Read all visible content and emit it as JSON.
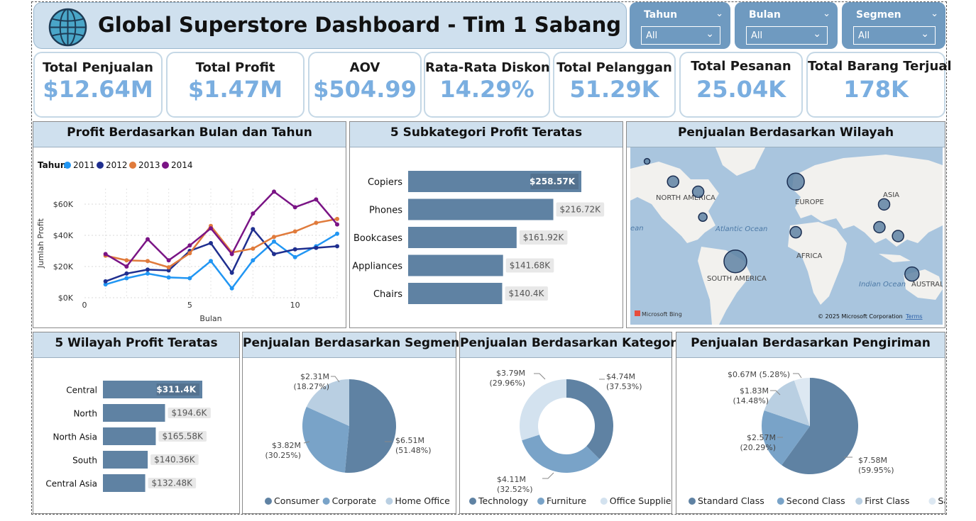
{
  "header": {
    "title": "Global Superstore Dashboard - Tim 1 Sabang",
    "icon": "globe-icon"
  },
  "filters": [
    {
      "label": "Tahun",
      "value": "All"
    },
    {
      "label": "Bulan",
      "value": "All"
    },
    {
      "label": "Segmen",
      "value": "All"
    }
  ],
  "kpis": [
    {
      "label": "Total Penjualan",
      "value": "$12.64M"
    },
    {
      "label": "Total Profit",
      "value": "$1.47M"
    },
    {
      "label": "AOV",
      "value": "$504.99"
    },
    {
      "label": "Rata-Rata Diskon",
      "value": "14.29%"
    },
    {
      "label": "Total Pelanggan",
      "value": "51.29K"
    },
    {
      "label": "Total Pesanan",
      "value": "25.04K"
    },
    {
      "label": "Total Barang Terjual",
      "value": "178K"
    }
  ],
  "colors": {
    "accent": "#7aaee0",
    "bar": "#5f82a3",
    "panel_header": "#cfe0ee",
    "filter_bg": "#6f9ac0"
  },
  "panels": {
    "line": {
      "title": "Profit Berdasarkan Bulan dan Tahun"
    },
    "subcat": {
      "title": "5 Subkategori Profit Teratas"
    },
    "map": {
      "title": "Penjualan Berdasarkan Wilayah"
    },
    "region": {
      "title": "5 Wilayah Profit Teratas"
    },
    "segment": {
      "title": "Penjualan Berdasarkan Segmen"
    },
    "category": {
      "title": "Penjualan Berdasarkan Kategori"
    },
    "shipping": {
      "title": "Penjualan Berdasarkan Pengiriman"
    }
  },
  "map": {
    "labels": [
      "NORTH AMERICA",
      "EUROPE",
      "ASIA",
      "Atlantic Ocean",
      "AFRICA",
      "SOUTH AMERICA",
      "Indian Ocean",
      "AUSTRAL",
      "ean"
    ],
    "credit_left": "Microsoft Bing",
    "credit_right": "© 2025 Microsoft Corporation",
    "terms": "Terms"
  },
  "chart_data": [
    {
      "type": "line",
      "title": "Profit Berdasarkan Bulan dan Tahun",
      "xlabel": "Bulan",
      "ylabel": "Jumlah Profit",
      "legend_title": "Tahun",
      "legend_position": "top-left",
      "xlim": [
        0,
        12
      ],
      "ylim": [
        0,
        70000
      ],
      "xticks": [
        0,
        5,
        10
      ],
      "yticks": [
        0,
        20000,
        40000,
        60000
      ],
      "ytick_labels": [
        "$0K",
        "$20K",
        "$40K",
        "$60K"
      ],
      "grid": true,
      "x": [
        1,
        2,
        3,
        4,
        5,
        6,
        7,
        8,
        9,
        10,
        11,
        12
      ],
      "series": [
        {
          "name": "2011",
          "color": "#2196f3",
          "values": [
            8500,
            12500,
            15500,
            13000,
            12500,
            23500,
            6000,
            24000,
            36000,
            26000,
            33000,
            41000
          ]
        },
        {
          "name": "2012",
          "color": "#1f2f8f",
          "values": [
            10500,
            15500,
            18000,
            17500,
            30000,
            35000,
            16000,
            44000,
            28000,
            31000,
            32000,
            33000
          ]
        },
        {
          "name": "2013",
          "color": "#e07b3c",
          "values": [
            27000,
            24000,
            23500,
            19500,
            28500,
            46000,
            29000,
            31500,
            39000,
            42500,
            48000,
            50500
          ]
        },
        {
          "name": "2014",
          "color": "#7a1485",
          "values": [
            28000,
            20000,
            37500,
            24000,
            33500,
            44500,
            28000,
            54000,
            68000,
            58000,
            63000,
            47000
          ]
        }
      ]
    },
    {
      "type": "bar",
      "orientation": "horizontal",
      "title": "5 Subkategori Profit Teratas",
      "categories": [
        "Copiers",
        "Phones",
        "Bookcases",
        "Appliances",
        "Chairs"
      ],
      "values": [
        258570,
        216720,
        161920,
        141680,
        140400
      ],
      "labels": [
        "$258.57K",
        "$216.72K",
        "$161.92K",
        "$141.68K",
        "$140.4K"
      ]
    },
    {
      "type": "scatter",
      "title": "Penjualan Berdasarkan Wilayah",
      "note": "bubble map",
      "bubbles": [
        {
          "lat": 64,
          "lon": -150,
          "size": 1
        },
        {
          "lat": 48,
          "lon": -122,
          "size": 2
        },
        {
          "lat": 40,
          "lon": -95,
          "size": 2
        },
        {
          "lat": 20,
          "lon": -90,
          "size": 1.5
        },
        {
          "lat": -15,
          "lon": -55,
          "size": 4
        },
        {
          "lat": 48,
          "lon": 10,
          "size": 3
        },
        {
          "lat": 8,
          "lon": 10,
          "size": 2
        },
        {
          "lat": 30,
          "lon": 105,
          "size": 2
        },
        {
          "lat": 12,
          "lon": 100,
          "size": 2
        },
        {
          "lat": 5,
          "lon": 120,
          "size": 2
        },
        {
          "lat": -25,
          "lon": 135,
          "size": 2.5
        }
      ]
    },
    {
      "type": "bar",
      "orientation": "horizontal",
      "title": "5 Wilayah Profit Teratas",
      "categories": [
        "Central",
        "North",
        "North Asia",
        "South",
        "Central Asia"
      ],
      "values": [
        311400,
        194600,
        165580,
        140360,
        132480
      ],
      "labels": [
        "$311.4K",
        "$194.6K",
        "$165.58K",
        "$140.36K",
        "$132.48K"
      ]
    },
    {
      "type": "pie",
      "title": "Penjualan Berdasarkan Segmen",
      "categories": [
        "Consumer",
        "Corporate",
        "Home Office"
      ],
      "values": [
        51.48,
        30.25,
        18.27
      ],
      "labels": [
        "$6.51M",
        "$3.82M",
        "$2.31M"
      ],
      "pct_labels": [
        "(51.48%)",
        "(30.25%)",
        "(18.27%)"
      ],
      "colors": [
        "#5f82a3",
        "#79a3c8",
        "#b9cfe2"
      ]
    },
    {
      "type": "pie",
      "donut": true,
      "title": "Penjualan Berdasarkan Kategori",
      "categories": [
        "Technology",
        "Furniture",
        "Office Supplies"
      ],
      "values": [
        37.53,
        32.52,
        29.96
      ],
      "labels": [
        "$4.74M",
        "$4.11M",
        "$3.79M"
      ],
      "pct_labels": [
        "(37.53%)",
        "(32.52%)",
        "(29.96%)"
      ],
      "colors": [
        "#5f82a3",
        "#79a3c8",
        "#d3e2ef"
      ]
    },
    {
      "type": "pie",
      "title": "Penjualan Berdasarkan Pengiriman",
      "categories": [
        "Standard Class",
        "Second Class",
        "First Class",
        "Same Day"
      ],
      "values": [
        59.95,
        20.29,
        14.48,
        5.28
      ],
      "labels": [
        "$7.58M",
        "$2.57M",
        "$1.83M",
        "$0.67M"
      ],
      "pct_labels": [
        "(59.95%)",
        "(20.29%)",
        "(14.48%)",
        "(5.28%)"
      ],
      "colors": [
        "#5f82a3",
        "#79a3c8",
        "#b9cfe2",
        "#dde8f2"
      ]
    }
  ]
}
